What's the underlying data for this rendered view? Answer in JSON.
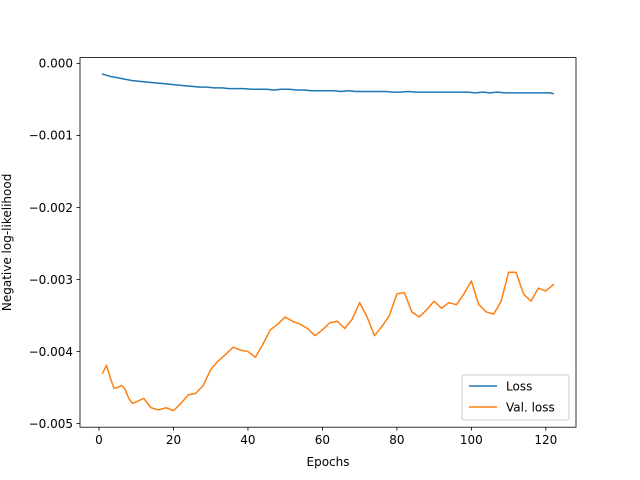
{
  "chart_data": {
    "type": "line",
    "title": "",
    "xlabel": "Epochs",
    "ylabel": "Negative log-likelihood",
    "xlim": [
      -5.1,
      128.1
    ],
    "ylim": [
      -0.00505,
      8e-05
    ],
    "xticks": [
      0,
      20,
      40,
      60,
      80,
      100,
      120
    ],
    "yticks": [
      -0.005,
      -0.004,
      -0.003,
      -0.002,
      -0.001,
      0.0
    ],
    "ytick_labels": [
      "−0.005",
      "−0.004",
      "−0.003",
      "−0.002",
      "−0.001",
      "0.000"
    ],
    "grid": false,
    "legend_position": "lower-right",
    "series": [
      {
        "name": "Loss",
        "color": "#1f77b4",
        "x": [
          1,
          3,
          5,
          7,
          9,
          11,
          13,
          15,
          17,
          19,
          21,
          23,
          25,
          27,
          29,
          31,
          33,
          35,
          37,
          39,
          41,
          43,
          45,
          47,
          49,
          51,
          53,
          55,
          57,
          59,
          61,
          63,
          65,
          67,
          69,
          71,
          73,
          75,
          77,
          79,
          81,
          83,
          85,
          87,
          89,
          91,
          93,
          95,
          97,
          99,
          101,
          103,
          105,
          107,
          109,
          111,
          113,
          115,
          117,
          119,
          121,
          122
        ],
        "y": [
          -0.00015,
          -0.00018,
          -0.0002,
          -0.00022,
          -0.00024,
          -0.00025,
          -0.00026,
          -0.00027,
          -0.00028,
          -0.00029,
          -0.0003,
          -0.00031,
          -0.00032,
          -0.00033,
          -0.00033,
          -0.00034,
          -0.00034,
          -0.00035,
          -0.00035,
          -0.00035,
          -0.00036,
          -0.00036,
          -0.00036,
          -0.00037,
          -0.00036,
          -0.00036,
          -0.00037,
          -0.00037,
          -0.00038,
          -0.00038,
          -0.00038,
          -0.00038,
          -0.00039,
          -0.00038,
          -0.00039,
          -0.00039,
          -0.00039,
          -0.00039,
          -0.00039,
          -0.0004,
          -0.0004,
          -0.00039,
          -0.0004,
          -0.0004,
          -0.0004,
          -0.0004,
          -0.0004,
          -0.0004,
          -0.0004,
          -0.0004,
          -0.00041,
          -0.0004,
          -0.00041,
          -0.0004,
          -0.00041,
          -0.00041,
          -0.00041,
          -0.00041,
          -0.00041,
          -0.00041,
          -0.00041,
          -0.00042
        ]
      },
      {
        "name": "Val. loss",
        "color": "#ff7f0e",
        "x": [
          1,
          2,
          3,
          4,
          5,
          6,
          7,
          8,
          9,
          10,
          12,
          14,
          16,
          18,
          20,
          22,
          24,
          26,
          28,
          30,
          32,
          34,
          36,
          38,
          40,
          42,
          44,
          46,
          48,
          50,
          52,
          54,
          56,
          58,
          60,
          62,
          64,
          66,
          68,
          70,
          72,
          74,
          76,
          78,
          80,
          82,
          84,
          86,
          88,
          90,
          92,
          94,
          96,
          98,
          100,
          102,
          104,
          106,
          108,
          110,
          112,
          114,
          116,
          118,
          120,
          122
        ],
        "y": [
          -0.0043,
          -0.00419,
          -0.00436,
          -0.00451,
          -0.0045,
          -0.00447,
          -0.00452,
          -0.00465,
          -0.00472,
          -0.0047,
          -0.00465,
          -0.00478,
          -0.00481,
          -0.00478,
          -0.00482,
          -0.00472,
          -0.0046,
          -0.00458,
          -0.00447,
          -0.00425,
          -0.00413,
          -0.00404,
          -0.00394,
          -0.00398,
          -0.004,
          -0.00408,
          -0.0039,
          -0.0037,
          -0.00362,
          -0.00352,
          -0.00358,
          -0.00362,
          -0.00368,
          -0.00378,
          -0.0037,
          -0.0036,
          -0.00358,
          -0.00368,
          -0.00355,
          -0.00332,
          -0.00352,
          -0.00378,
          -0.00365,
          -0.0035,
          -0.0032,
          -0.00318,
          -0.00345,
          -0.00352,
          -0.00342,
          -0.0033,
          -0.0034,
          -0.00332,
          -0.00335,
          -0.0032,
          -0.00302,
          -0.00335,
          -0.00345,
          -0.00348,
          -0.0033,
          -0.0029,
          -0.0029,
          -0.0032,
          -0.0033,
          -0.00312,
          -0.00316,
          -0.00307
        ]
      }
    ]
  }
}
